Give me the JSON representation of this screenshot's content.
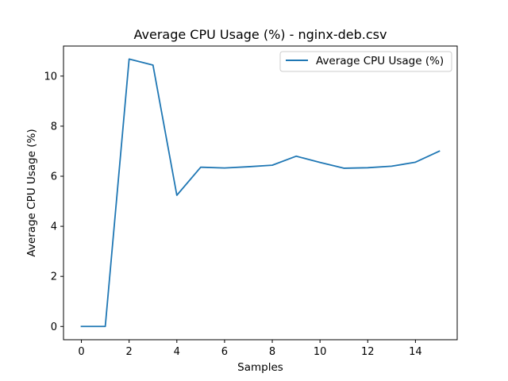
{
  "chart_data": {
    "type": "line",
    "title": "Average CPU Usage (%) - nginx-deb.csv",
    "xlabel": "Samples",
    "ylabel": "Average CPU Usage (%)",
    "xlim": [
      -0.75,
      15.75
    ],
    "ylim": [
      -0.53,
      11.2
    ],
    "xticks": [
      0,
      2,
      4,
      6,
      8,
      10,
      12,
      14
    ],
    "yticks": [
      0,
      2,
      4,
      6,
      8,
      10
    ],
    "grid": false,
    "legend_position": "top-right",
    "series": [
      {
        "name": "Average CPU Usage (%)",
        "color": "#1f77b4",
        "x": [
          0,
          1,
          2,
          3,
          4,
          5,
          6,
          7,
          8,
          9,
          10,
          11,
          12,
          13,
          14,
          15
        ],
        "y": [
          0.0,
          0.0,
          10.68,
          10.44,
          5.24,
          6.36,
          6.33,
          6.38,
          6.44,
          6.8,
          6.55,
          6.32,
          6.34,
          6.4,
          6.56,
          7.0
        ]
      }
    ]
  }
}
